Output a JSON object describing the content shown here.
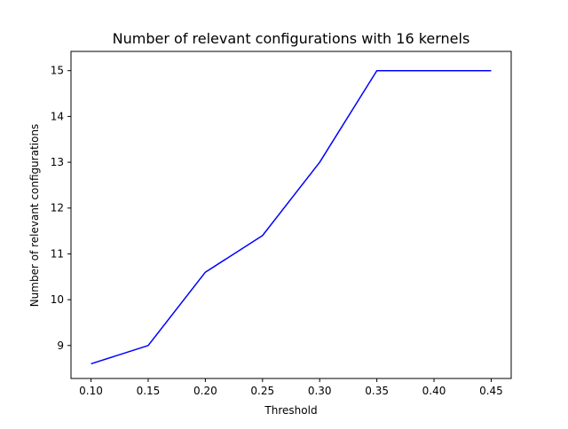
{
  "chart_data": {
    "type": "line",
    "title": "Number of relevant configurations with 16 kernels",
    "xlabel": "Threshold",
    "ylabel": "Number of relevant configurations",
    "xlim": [
      0.0825,
      0.4675
    ],
    "ylim": [
      8.28,
      15.42
    ],
    "xticks": [
      0.1,
      0.15,
      0.2,
      0.25,
      0.3,
      0.35,
      0.4,
      0.45
    ],
    "xtick_labels": [
      "0.10",
      "0.15",
      "0.20",
      "0.25",
      "0.30",
      "0.35",
      "0.40",
      "0.45"
    ],
    "yticks": [
      9,
      10,
      11,
      12,
      13,
      14,
      15
    ],
    "ytick_labels": [
      "9",
      "10",
      "11",
      "12",
      "13",
      "14",
      "15"
    ],
    "grid": false,
    "series": [
      {
        "color": "#0000ff",
        "x": [
          0.1,
          0.15,
          0.2,
          0.25,
          0.3,
          0.35,
          0.4,
          0.45
        ],
        "y": [
          8.6,
          9.0,
          10.6,
          11.4,
          13.0,
          15.0,
          15.0,
          15.0
        ]
      }
    ]
  }
}
